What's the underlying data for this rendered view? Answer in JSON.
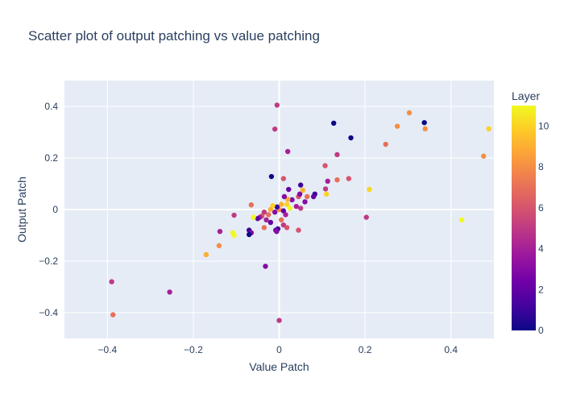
{
  "chart_data": {
    "type": "scatter",
    "title": "Scatter plot of output patching vs value patching",
    "xlabel": "Value Patch",
    "ylabel": "Output Patch",
    "xlim": [
      -0.5,
      0.5
    ],
    "ylim": [
      -0.5,
      0.5
    ],
    "xticks": [
      -0.4,
      -0.2,
      0,
      0.2,
      0.4
    ],
    "xtick_labels": [
      "−0.4",
      "−0.2",
      "0",
      "0.2",
      "0.4"
    ],
    "yticks": [
      -0.4,
      -0.2,
      0,
      0.2,
      0.4
    ],
    "ytick_labels": [
      "−0.4",
      "−0.2",
      "0",
      "0.2",
      "0.4"
    ],
    "grid": true,
    "plot_background": "#e5ecf6",
    "colorbar": {
      "title": "Layer",
      "range": [
        0,
        11
      ],
      "ticks": [
        0,
        2,
        4,
        6,
        8,
        10
      ],
      "tick_labels": [
        "0",
        "2",
        "4",
        "6",
        "8",
        "10"
      ],
      "colorscale": [
        "#0d0887",
        "#46039f",
        "#7201a8",
        "#9c179e",
        "#bd3786",
        "#d8576b",
        "#ed7953",
        "#fb9f3a",
        "#fdca26",
        "#f0f921"
      ]
    },
    "points": [
      {
        "x": 0.488,
        "y": 0.313,
        "layer": 10
      },
      {
        "x": 0.476,
        "y": 0.207,
        "layer": 8
      },
      {
        "x": 0.425,
        "y": -0.04,
        "layer": 11
      },
      {
        "x": 0.338,
        "y": 0.337,
        "layer": 0
      },
      {
        "x": 0.34,
        "y": 0.313,
        "layer": 8
      },
      {
        "x": 0.303,
        "y": 0.375,
        "layer": 8
      },
      {
        "x": 0.275,
        "y": 0.323,
        "layer": 8
      },
      {
        "x": 0.248,
        "y": 0.253,
        "layer": 7
      },
      {
        "x": 0.21,
        "y": 0.078,
        "layer": 10
      },
      {
        "x": 0.203,
        "y": -0.03,
        "layer": 5
      },
      {
        "x": 0.127,
        "y": 0.335,
        "layer": 0
      },
      {
        "x": 0.167,
        "y": 0.278,
        "layer": 0
      },
      {
        "x": 0.135,
        "y": 0.213,
        "layer": 5
      },
      {
        "x": 0.107,
        "y": 0.17,
        "layer": 6
      },
      {
        "x": 0.162,
        "y": 0.12,
        "layer": 6
      },
      {
        "x": 0.135,
        "y": 0.115,
        "layer": 7
      },
      {
        "x": 0.113,
        "y": 0.11,
        "layer": 4
      },
      {
        "x": 0.108,
        "y": 0.08,
        "layer": 5
      },
      {
        "x": 0.11,
        "y": 0.06,
        "layer": 10
      },
      {
        "x": 0.083,
        "y": 0.06,
        "layer": 1
      },
      {
        "x": 0.08,
        "y": 0.05,
        "layer": 2
      },
      {
        "x": 0.065,
        "y": 0.05,
        "layer": 7
      },
      {
        "x": 0.06,
        "y": 0.03,
        "layer": 3
      },
      {
        "x": 0.055,
        "y": 0.075,
        "layer": 9
      },
      {
        "x": 0.05,
        "y": 0.095,
        "layer": 1
      },
      {
        "x": 0.045,
        "y": 0.05,
        "layer": 6
      },
      {
        "x": 0.048,
        "y": 0.06,
        "layer": 3
      },
      {
        "x": 0.04,
        "y": 0.012,
        "layer": 4
      },
      {
        "x": 0.045,
        "y": -0.08,
        "layer": 6
      },
      {
        "x": 0.05,
        "y": 0.005,
        "layer": 5
      },
      {
        "x": 0.02,
        "y": 0.225,
        "layer": 4
      },
      {
        "x": 0.022,
        "y": 0.078,
        "layer": 2
      },
      {
        "x": 0.03,
        "y": 0.038,
        "layer": 3
      },
      {
        "x": 0.02,
        "y": 0.04,
        "layer": 9
      },
      {
        "x": 0.018,
        "y": 0.02,
        "layer": 10
      },
      {
        "x": 0.025,
        "y": 0.005,
        "layer": 11
      },
      {
        "x": 0.012,
        "y": 0.05,
        "layer": 3
      },
      {
        "x": 0.01,
        "y": 0.12,
        "layer": 6
      },
      {
        "x": 0.005,
        "y": 0.02,
        "layer": 9
      },
      {
        "x": 0.0,
        "y": 0.0,
        "layer": 8
      },
      {
        "x": -0.005,
        "y": 0.01,
        "layer": 1
      },
      {
        "x": 0.01,
        "y": -0.005,
        "layer": 2
      },
      {
        "x": -0.01,
        "y": -0.01,
        "layer": 3
      },
      {
        "x": 0.015,
        "y": -0.02,
        "layer": 4
      },
      {
        "x": 0.005,
        "y": -0.04,
        "layer": 7
      },
      {
        "x": 0.01,
        "y": -0.06,
        "layer": 5
      },
      {
        "x": 0.018,
        "y": -0.07,
        "layer": 6
      },
      {
        "x": -0.003,
        "y": -0.075,
        "layer": 1
      },
      {
        "x": -0.008,
        "y": -0.08,
        "layer": 2
      },
      {
        "x": -0.006,
        "y": -0.085,
        "layer": 3
      },
      {
        "x": 0.0,
        "y": -0.43,
        "layer": 5
      },
      {
        "x": -0.005,
        "y": 0.405,
        "layer": 5
      },
      {
        "x": -0.01,
        "y": 0.312,
        "layer": 5
      },
      {
        "x": -0.018,
        "y": 0.128,
        "layer": 0
      },
      {
        "x": -0.015,
        "y": 0.015,
        "layer": 10
      },
      {
        "x": -0.02,
        "y": 0.0,
        "layer": 9
      },
      {
        "x": -0.025,
        "y": -0.02,
        "layer": 7
      },
      {
        "x": -0.02,
        "y": -0.05,
        "layer": 2
      },
      {
        "x": -0.03,
        "y": -0.04,
        "layer": 4
      },
      {
        "x": -0.035,
        "y": -0.07,
        "layer": 7
      },
      {
        "x": -0.035,
        "y": -0.01,
        "layer": 5
      },
      {
        "x": -0.04,
        "y": -0.025,
        "layer": 6
      },
      {
        "x": -0.045,
        "y": -0.03,
        "layer": 4
      },
      {
        "x": -0.05,
        "y": -0.035,
        "layer": 2
      },
      {
        "x": -0.032,
        "y": -0.22,
        "layer": 3
      },
      {
        "x": -0.065,
        "y": 0.018,
        "layer": 7
      },
      {
        "x": -0.06,
        "y": -0.03,
        "layer": 11
      },
      {
        "x": -0.07,
        "y": -0.08,
        "layer": 1
      },
      {
        "x": -0.065,
        "y": -0.09,
        "layer": 3
      },
      {
        "x": -0.07,
        "y": -0.097,
        "layer": 0
      },
      {
        "x": -0.105,
        "y": -0.022,
        "layer": 5
      },
      {
        "x": -0.108,
        "y": -0.09,
        "layer": 11
      },
      {
        "x": -0.105,
        "y": -0.1,
        "layer": 11
      },
      {
        "x": -0.138,
        "y": -0.085,
        "layer": 4
      },
      {
        "x": -0.14,
        "y": -0.14,
        "layer": 8
      },
      {
        "x": -0.17,
        "y": -0.175,
        "layer": 9
      },
      {
        "x": -0.255,
        "y": -0.32,
        "layer": 4
      },
      {
        "x": -0.39,
        "y": -0.28,
        "layer": 5
      },
      {
        "x": -0.387,
        "y": -0.408,
        "layer": 7
      }
    ]
  }
}
